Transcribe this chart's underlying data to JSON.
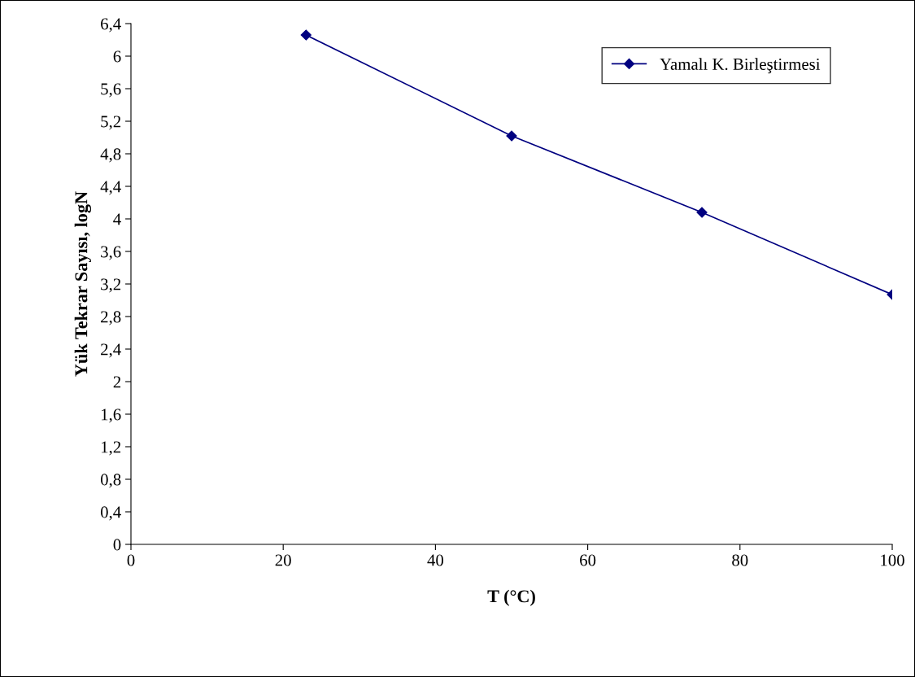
{
  "chart_data": {
    "type": "line",
    "xlabel": "T (°C)",
    "ylabel": "Yük Tekrar Sayısı, logN",
    "x": [
      23,
      50,
      75,
      100
    ],
    "series": [
      {
        "name": "Yamalı K. Birleştirmesi",
        "color": "#000080",
        "values": [
          6.26,
          5.02,
          4.08,
          3.07
        ]
      }
    ],
    "xlim": [
      0,
      100
    ],
    "xticks": [
      0,
      20,
      40,
      60,
      80,
      100
    ],
    "ylim": [
      0,
      6.4
    ],
    "yticks": [
      0,
      {
        "value": 0.4,
        "label": "0,4"
      },
      {
        "value": 0.8,
        "label": "0,8"
      },
      {
        "value": 1.2,
        "label": "1,2"
      },
      {
        "value": 1.6,
        "label": "1,6"
      },
      2,
      {
        "value": 2.4,
        "label": "2,4"
      },
      {
        "value": 2.8,
        "label": "2,8"
      },
      {
        "value": 3.2,
        "label": "3,2"
      },
      {
        "value": 3.6,
        "label": "3,6"
      },
      4,
      {
        "value": 4.4,
        "label": "4,4"
      },
      {
        "value": 4.8,
        "label": "4,8"
      },
      {
        "value": 5.2,
        "label": "5,2"
      },
      {
        "value": 5.6,
        "label": "5,6"
      },
      6,
      {
        "value": 6.4,
        "label": "6,4"
      }
    ],
    "marker": "diamond",
    "line_style": "solid",
    "grid": false,
    "legend": "top right"
  }
}
